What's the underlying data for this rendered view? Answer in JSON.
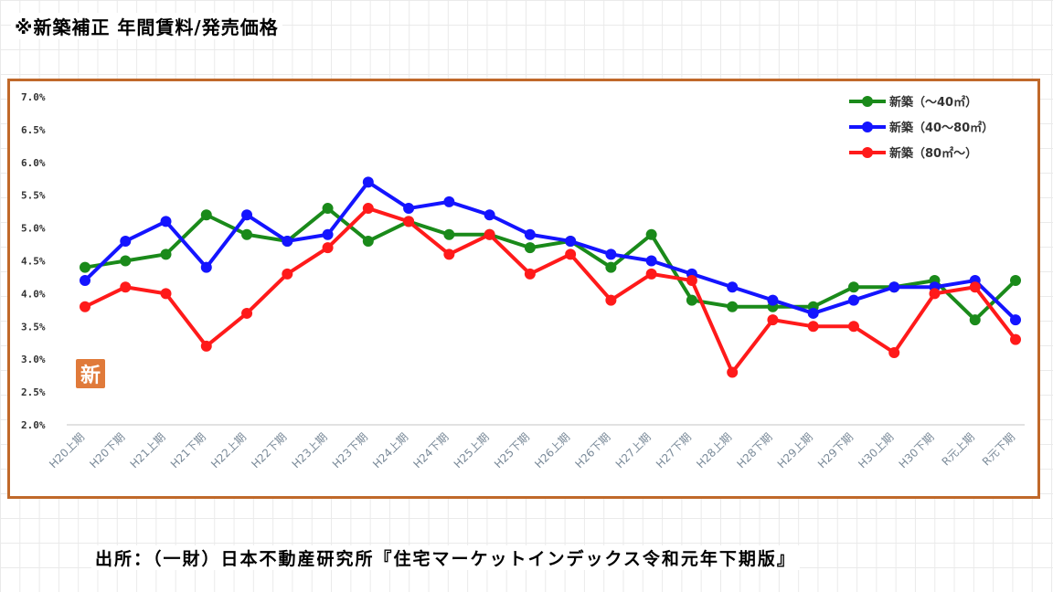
{
  "page": {
    "title": "※新築補正 年間賃料/発売価格",
    "source": "出所：（一財）日本不動産研究所『住宅マーケットインデックス令和元年下期版』",
    "badge": "新"
  },
  "colors": {
    "frame": "#c0692a",
    "series": [
      "#1a8a1a",
      "#1414ff",
      "#ff1a1a"
    ]
  },
  "chart_data": {
    "type": "line",
    "categories": [
      "H20上期",
      "H20下期",
      "H21上期",
      "H21下期",
      "H22上期",
      "H22下期",
      "H23上期",
      "H23下期",
      "H24上期",
      "H24下期",
      "H25上期",
      "H25下期",
      "H26上期",
      "H26下期",
      "H27上期",
      "H27下期",
      "H28上期",
      "H28下期",
      "H29上期",
      "H29下期",
      "H30上期",
      "H30下期",
      "R元上期",
      "R元下期"
    ],
    "ylim": [
      2.0,
      7.0
    ],
    "yticks": [
      "2.0%",
      "2.5%",
      "3.0%",
      "3.5%",
      "4.0%",
      "4.5%",
      "5.0%",
      "5.5%",
      "6.0%",
      "6.5%",
      "7.0%"
    ],
    "legend_position": "top-right",
    "grid": false,
    "series": [
      {
        "name": "新築（～40㎡）",
        "values": [
          4.4,
          4.5,
          4.6,
          5.2,
          4.9,
          4.8,
          5.3,
          4.8,
          5.1,
          4.9,
          4.9,
          4.7,
          4.8,
          4.4,
          4.9,
          3.9,
          3.8,
          3.8,
          3.8,
          4.1,
          4.1,
          4.2,
          3.6,
          4.2
        ]
      },
      {
        "name": "新築（40～80㎡）",
        "values": [
          4.2,
          4.8,
          5.1,
          4.4,
          5.2,
          4.8,
          4.9,
          5.7,
          5.3,
          5.4,
          5.2,
          4.9,
          4.8,
          4.6,
          4.5,
          4.3,
          4.1,
          3.9,
          3.7,
          3.9,
          4.1,
          4.1,
          4.2,
          3.6
        ]
      },
      {
        "name": "新築（80㎡～）",
        "values": [
          3.8,
          4.1,
          4.0,
          3.2,
          3.7,
          4.3,
          4.7,
          5.3,
          5.1,
          4.6,
          4.9,
          4.3,
          4.6,
          3.9,
          4.3,
          4.2,
          2.8,
          3.6,
          3.5,
          3.5,
          3.1,
          4.0,
          4.1,
          3.3
        ]
      }
    ]
  }
}
